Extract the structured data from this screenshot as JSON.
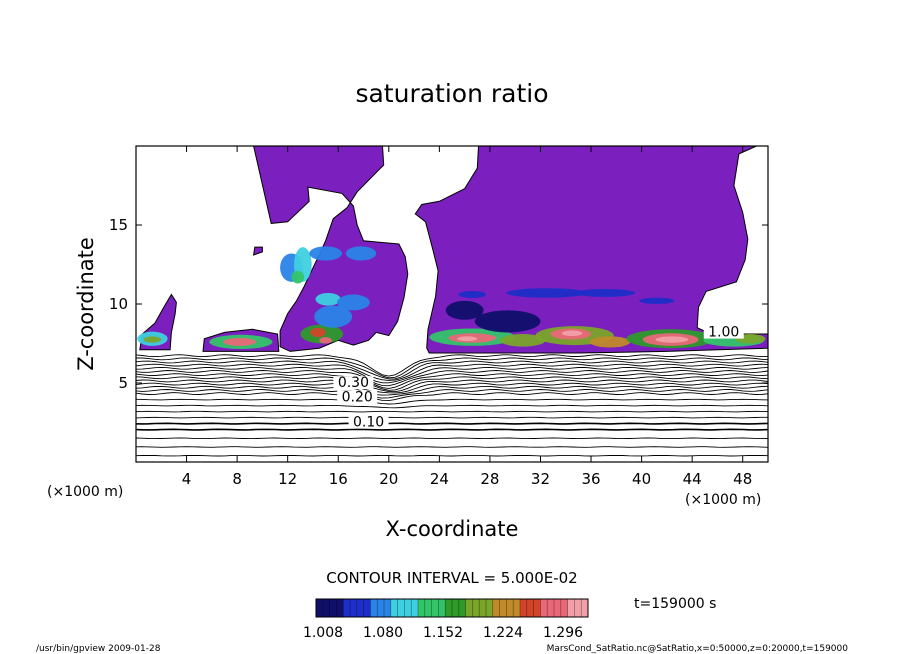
{
  "chart_data": {
    "type": "heatmap",
    "title": "saturation ratio",
    "xlabel": "X-coordinate",
    "ylabel": "Z-coordinate",
    "x_unit": "(×1000 m)",
    "y_unit": "(×1000 m)",
    "xlim": [
      0,
      50
    ],
    "ylim": [
      0,
      20
    ],
    "x_ticks": [
      4,
      8,
      12,
      16,
      20,
      24,
      28,
      32,
      36,
      40,
      44,
      48
    ],
    "y_ticks": [
      5,
      10,
      15
    ],
    "contour_interval_text": "CONTOUR INTERVAL = 5.000E-02",
    "contour_interval": 0.05,
    "contour_labels": [
      {
        "text": "0.10",
        "x": 18.4,
        "z": 2.3
      },
      {
        "text": "0.20",
        "x": 17.5,
        "z": 3.9
      },
      {
        "text": "0.30",
        "x": 17.2,
        "z": 4.8
      },
      {
        "text": "1.00",
        "x": 46.5,
        "z": 8.0
      }
    ],
    "shading_levels": [
      "1.008",
      "1.080",
      "1.152",
      "1.224",
      "1.296"
    ],
    "colorbar_colors": [
      "#10106a",
      "#1e2ec8",
      "#2a84e8",
      "#3ed0e0",
      "#33c46a",
      "#2e9a2a",
      "#7aa52a",
      "#c08a2a",
      "#d2442a",
      "#e86878",
      "#f2a0a8"
    ],
    "fill_color": "#7b1fbf",
    "time_label": "t=159000 s"
  },
  "footer": {
    "left": "/usr/bin/gpview   2009-01-28",
    "right": "MarsCond_SatRatio.nc@SatRatio,x=0:50000,z=0:20000,t=159000"
  }
}
